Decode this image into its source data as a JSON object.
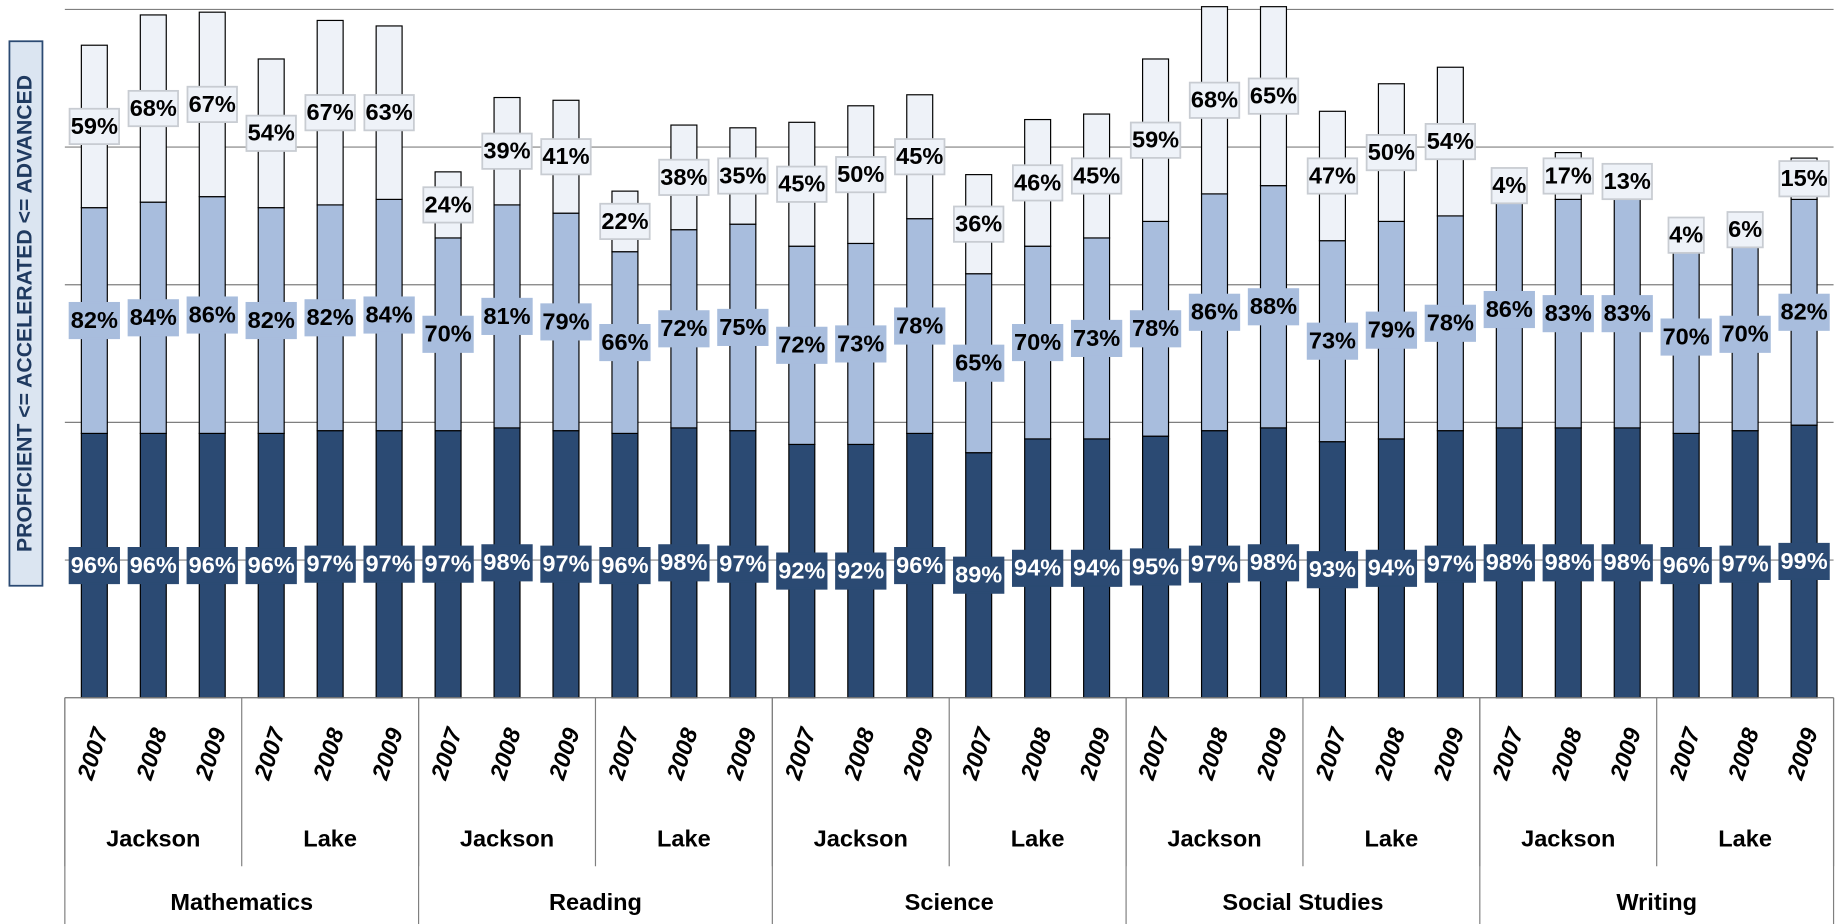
{
  "chart_data": {
    "type": "stacked-bar",
    "y_label": "PROFICIENT <= ACCELERATED <= ADVANCED",
    "categories": [
      "2007",
      "2008",
      "2009",
      "2007",
      "2008",
      "2009",
      "2007",
      "2008",
      "2009",
      "2007",
      "2008",
      "2009",
      "2007",
      "2008",
      "2009",
      "2007",
      "2008",
      "2009",
      "2007",
      "2008",
      "2009",
      "2007",
      "2008",
      "2009",
      "2007",
      "2008",
      "2009",
      "2007",
      "2008",
      "2009"
    ],
    "category_groups": [
      "Jackson",
      "Lake",
      "Jackson",
      "Lake",
      "Jackson",
      "Lake",
      "Jackson",
      "Lake",
      "Jackson",
      "Lake"
    ],
    "category_supergroups": [
      "Mathematics",
      "Reading",
      "Science",
      "Social Studies",
      "Writing"
    ],
    "series": [
      {
        "color": "#2b4a73",
        "label_color": "#ffffff",
        "values": [
          96,
          96,
          96,
          96,
          97,
          97,
          97,
          98,
          97,
          96,
          98,
          97,
          92,
          92,
          96,
          89,
          94,
          94,
          95,
          97,
          98,
          93,
          94,
          97,
          98,
          98,
          98,
          96,
          97,
          99
        ],
        "value_labels": [
          "96%",
          "96%",
          "96%",
          "96%",
          "97%",
          "97%",
          "97%",
          "98%",
          "97%",
          "96%",
          "98%",
          "97%",
          "92%",
          "92%",
          "96%",
          "89%",
          "94%",
          "94%",
          "95%",
          "97%",
          "98%",
          "93%",
          "94%",
          "97%",
          "98%",
          "98%",
          "98%",
          "96%",
          "97%",
          "99%"
        ]
      },
      {
        "color": "#a8bddd",
        "label_color": "#000000",
        "values": [
          82,
          84,
          86,
          82,
          82,
          84,
          70,
          81,
          79,
          66,
          72,
          75,
          72,
          73,
          78,
          65,
          70,
          73,
          78,
          86,
          88,
          73,
          79,
          78,
          86,
          83,
          83,
          70,
          70,
          82
        ],
        "value_labels": [
          "82%",
          "84%",
          "86%",
          "82%",
          "82%",
          "84%",
          "70%",
          "81%",
          "79%",
          "66%",
          "72%",
          "75%",
          "72%",
          "73%",
          "78%",
          "65%",
          "70%",
          "73%",
          "78%",
          "86%",
          "88%",
          "73%",
          "79%",
          "78%",
          "86%",
          "83%",
          "83%",
          "70%",
          "70%",
          "82%"
        ]
      },
      {
        "color": "#eef2f8",
        "label_color": "#000000",
        "values": [
          59,
          68,
          67,
          54,
          67,
          63,
          24,
          39,
          41,
          22,
          38,
          35,
          45,
          50,
          45,
          36,
          46,
          45,
          59,
          68,
          65,
          47,
          50,
          54,
          4,
          17,
          13,
          4,
          6,
          15
        ],
        "value_labels": [
          "59%",
          "68%",
          "67%",
          "54%",
          "67%",
          "63%",
          "24%",
          "39%",
          "41%",
          "22%",
          "38%",
          "35%",
          "45%",
          "50%",
          "45%",
          "36%",
          "46%",
          "45%",
          "59%",
          "68%",
          "65%",
          "47%",
          "50%",
          "54%",
          "4%",
          "17%",
          "13%",
          "4%",
          "6%",
          "15%"
        ]
      }
    ],
    "ylim": [
      0,
      250
    ],
    "yticks": [
      0,
      50,
      100,
      150,
      200,
      250
    ],
    "grid": true
  }
}
